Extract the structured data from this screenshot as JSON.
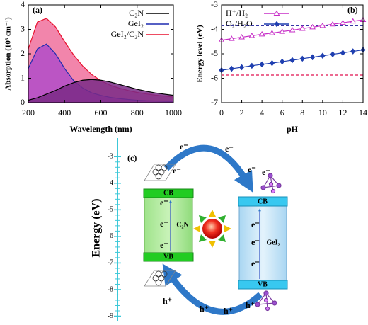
{
  "chart_data": [
    {
      "type": "area",
      "label": "(a)",
      "x_label": "Wavelength (nm)",
      "y_label": "Absorption (10⁵ cm⁻¹)",
      "x": [
        200,
        250,
        300,
        350,
        400,
        450,
        500,
        550,
        600,
        650,
        700,
        750,
        800,
        850,
        900,
        950,
        1000
      ],
      "series": [
        {
          "name": "C₂N",
          "color": "#000000",
          "fill": "#7a2a86",
          "values": [
            0.1,
            0.2,
            0.35,
            0.5,
            0.68,
            0.82,
            0.92,
            0.95,
            0.92,
            0.85,
            0.75,
            0.65,
            0.55,
            0.47,
            0.4,
            0.35,
            0.3
          ]
        },
        {
          "name": "GeI₂",
          "color": "#1f2bb0",
          "fill": "#b24cc8",
          "values": [
            1.4,
            2.2,
            2.4,
            2.0,
            1.4,
            0.9,
            0.6,
            0.4,
            0.3,
            0.22,
            0.17,
            0.13,
            0.1,
            0.08,
            0.07,
            0.06,
            0.05
          ]
        },
        {
          "name": "GeI₂/C₂N",
          "color": "#e8102e",
          "fill": "#f0709c",
          "values": [
            2.2,
            3.3,
            3.45,
            3.1,
            2.5,
            1.95,
            1.5,
            1.15,
            0.9,
            0.72,
            0.6,
            0.5,
            0.42,
            0.36,
            0.31,
            0.27,
            0.23
          ]
        }
      ],
      "xlim": [
        200,
        1000
      ],
      "xticks": [
        200,
        400,
        600,
        800,
        1000
      ],
      "ylim": [
        0,
        4
      ],
      "yticks": [
        0,
        1,
        2,
        3,
        4
      ],
      "legend": "upper right"
    },
    {
      "type": "line",
      "label": "(b)",
      "x_label": "pH",
      "y_label": "Energy level (eV)",
      "x": [
        0,
        1,
        2,
        3,
        4,
        5,
        6,
        7,
        8,
        9,
        10,
        11,
        12,
        13,
        14
      ],
      "series": [
        {
          "name": "H⁺/H₂",
          "color": "#c72fc7",
          "marker": "triangle",
          "values": [
            -4.44,
            -4.38,
            -4.32,
            -4.26,
            -4.2,
            -4.15,
            -4.09,
            -4.03,
            -3.97,
            -3.91,
            -3.85,
            -3.79,
            -3.73,
            -3.67,
            -3.61
          ]
        },
        {
          "name": "O₂/H₂O",
          "color": "#1f3fb0",
          "marker": "diamond",
          "values": [
            -5.67,
            -5.61,
            -5.55,
            -5.49,
            -5.43,
            -5.38,
            -5.32,
            -5.26,
            -5.2,
            -5.14,
            -5.08,
            -5.02,
            -4.96,
            -4.9,
            -4.84
          ]
        }
      ],
      "reference_lines": [
        {
          "value": -3.85,
          "color": "#1a1a9a"
        },
        {
          "value": -5.87,
          "color": "#e0104f"
        }
      ],
      "xlim": [
        0,
        14
      ],
      "xticks": [
        0,
        2,
        4,
        6,
        8,
        10,
        12,
        14
      ],
      "ylim": [
        -7,
        -3
      ],
      "yticks": [
        -7,
        -6,
        -5,
        -4,
        -3
      ],
      "legend": "upper left"
    }
  ],
  "diagram": {
    "label": "(c)",
    "axis_label": "Energy (eV)",
    "ylim": [
      -9.2,
      -2.3
    ],
    "yticks": [
      -3,
      -4,
      -5,
      -6,
      -7,
      -8,
      -9
    ],
    "c2n": {
      "name": "C₂N",
      "cb": "CB",
      "vb": "VB"
    },
    "gei2": {
      "name": "GeI₂",
      "cb": "CB",
      "vb": "VB"
    },
    "electron": "e⁻",
    "hole": "h⁺"
  }
}
